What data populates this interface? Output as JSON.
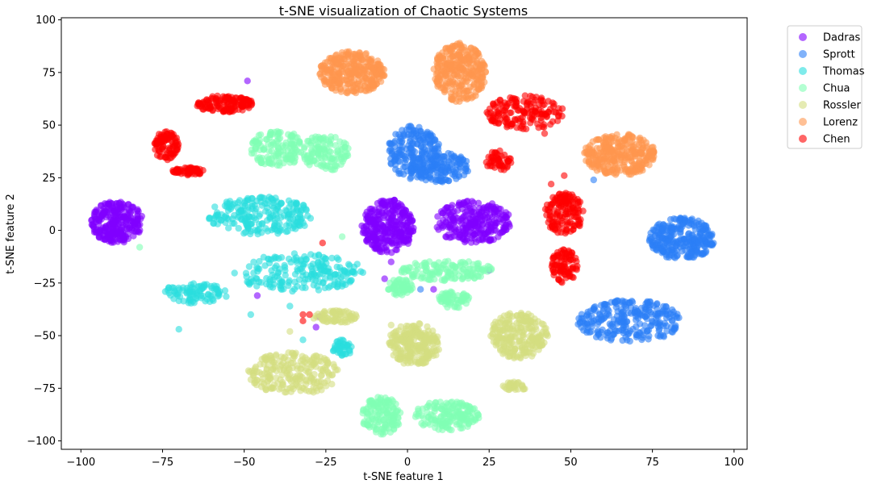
{
  "chart_data": {
    "type": "scatter",
    "title": "t-SNE visualization of Chaotic Systems",
    "xlabel": "t-SNE feature 1",
    "ylabel": "t-SNE feature 2",
    "xlim": [
      -106,
      104
    ],
    "ylim": [
      -104,
      101
    ],
    "xticks": [
      -100,
      -75,
      -50,
      -25,
      0,
      25,
      50,
      75,
      100
    ],
    "yticks": [
      -100,
      -75,
      -50,
      -25,
      0,
      25,
      50,
      75,
      100
    ],
    "xtick_labels": [
      "−100",
      "−75",
      "−50",
      "−25",
      "0",
      "25",
      "50",
      "75",
      "100"
    ],
    "ytick_labels": [
      "−100",
      "−75",
      "−50",
      "−25",
      "0",
      "25",
      "50",
      "75",
      "100"
    ],
    "grid": false,
    "legend_position": "outside-top-right",
    "series": [
      {
        "name": "Dadras",
        "color": "#8000ff",
        "clusters": [
          {
            "cx": -89,
            "cy": 4,
            "rx": 8,
            "ry": 10,
            "n": 260
          },
          {
            "cx": -6,
            "cy": 2,
            "rx": 8,
            "ry": 13,
            "n": 300
          },
          {
            "cx": 20,
            "cy": 4,
            "rx": 12,
            "ry": 10,
            "n": 260
          }
        ],
        "points": [
          [
            -49,
            71
          ],
          [
            -27,
            -41
          ],
          [
            -28,
            -46
          ],
          [
            -46,
            -31
          ],
          [
            -7,
            -23
          ],
          [
            8,
            -28
          ],
          [
            25,
            -19
          ],
          [
            -5,
            -15
          ]
        ]
      },
      {
        "name": "Sprott",
        "color": "#2c7ef7",
        "clusters": [
          {
            "cx": 2,
            "cy": 37,
            "rx": 8,
            "ry": 13,
            "n": 200
          },
          {
            "cx": 10,
            "cy": 30,
            "rx": 9,
            "ry": 7,
            "n": 130
          },
          {
            "cx": 84,
            "cy": -4,
            "rx": 10,
            "ry": 10,
            "n": 280
          },
          {
            "cx": 68,
            "cy": -43,
            "rx": 16,
            "ry": 10,
            "n": 260
          }
        ],
        "points": [
          [
            57,
            24
          ],
          [
            4,
            -28
          ]
        ]
      },
      {
        "name": "Thomas",
        "color": "#2adddd",
        "clusters": [
          {
            "cx": -45,
            "cy": 7,
            "rx": 16,
            "ry": 9,
            "n": 220
          },
          {
            "cx": -33,
            "cy": -20,
            "rx": 20,
            "ry": 9,
            "n": 200
          },
          {
            "cx": -65,
            "cy": -30,
            "rx": 10,
            "ry": 5,
            "n": 90
          },
          {
            "cx": -20,
            "cy": -56,
            "rx": 3,
            "ry": 4,
            "n": 40
          }
        ],
        "points": [
          [
            -70,
            -47
          ],
          [
            -32,
            -52
          ],
          [
            -48,
            -40
          ],
          [
            -36,
            -36
          ]
        ]
      },
      {
        "name": "Chua",
        "color": "#80ffb4",
        "clusters": [
          {
            "cx": -40,
            "cy": 39,
            "rx": 8,
            "ry": 9,
            "n": 140
          },
          {
            "cx": -25,
            "cy": 37,
            "rx": 7,
            "ry": 9,
            "n": 120
          },
          {
            "cx": 12,
            "cy": -19,
            "rx": 14,
            "ry": 5,
            "n": 140
          },
          {
            "cx": -2,
            "cy": -27,
            "rx": 4,
            "ry": 4,
            "n": 60
          },
          {
            "cx": 14,
            "cy": -33,
            "rx": 5,
            "ry": 4,
            "n": 60
          },
          {
            "cx": -8,
            "cy": -88,
            "rx": 6,
            "ry": 9,
            "n": 140
          },
          {
            "cx": 12,
            "cy": -88,
            "rx": 10,
            "ry": 7,
            "n": 160
          }
        ],
        "points": [
          [
            -82,
            -8
          ],
          [
            -20,
            -3
          ]
        ]
      },
      {
        "name": "Rossler",
        "color": "#d4dd80",
        "clusters": [
          {
            "cx": -35,
            "cy": -68,
            "rx": 14,
            "ry": 10,
            "n": 220
          },
          {
            "cx": 2,
            "cy": -54,
            "rx": 8,
            "ry": 10,
            "n": 240
          },
          {
            "cx": 34,
            "cy": -50,
            "rx": 9,
            "ry": 11,
            "n": 230
          },
          {
            "cx": -22,
            "cy": -41,
            "rx": 7,
            "ry": 3,
            "n": 70
          },
          {
            "cx": 33,
            "cy": -74,
            "rx": 4,
            "ry": 2,
            "n": 30
          }
        ],
        "points": [
          [
            -5,
            -45
          ],
          [
            -36,
            -48
          ]
        ]
      },
      {
        "name": "Lorenz",
        "color": "#ff964f",
        "clusters": [
          {
            "cx": -17,
            "cy": 75,
            "rx": 10,
            "ry": 10,
            "n": 300
          },
          {
            "cx": 16,
            "cy": 75,
            "rx": 8,
            "ry": 14,
            "n": 300
          },
          {
            "cx": 65,
            "cy": 36,
            "rx": 11,
            "ry": 10,
            "n": 300
          }
        ],
        "points": []
      },
      {
        "name": "Chen",
        "color": "#ff0000",
        "clusters": [
          {
            "cx": -56,
            "cy": 60,
            "rx": 9,
            "ry": 4,
            "n": 130
          },
          {
            "cx": -74,
            "cy": 40,
            "rx": 4,
            "ry": 7,
            "n": 90
          },
          {
            "cx": -67,
            "cy": 28,
            "rx": 5,
            "ry": 2,
            "n": 60
          },
          {
            "cx": 36,
            "cy": 56,
            "rx": 12,
            "ry": 8,
            "n": 160
          },
          {
            "cx": 28,
            "cy": 33,
            "rx": 4,
            "ry": 5,
            "n": 50
          },
          {
            "cx": 48,
            "cy": 8,
            "rx": 6,
            "ry": 10,
            "n": 140
          },
          {
            "cx": 48,
            "cy": -17,
            "rx": 4,
            "ry": 8,
            "n": 90
          }
        ],
        "points": [
          [
            -26,
            -6
          ],
          [
            -32,
            -40
          ],
          [
            -30,
            -40
          ],
          [
            -32,
            -43
          ],
          [
            42,
            46
          ],
          [
            48,
            26
          ],
          [
            44,
            22
          ]
        ]
      }
    ]
  }
}
